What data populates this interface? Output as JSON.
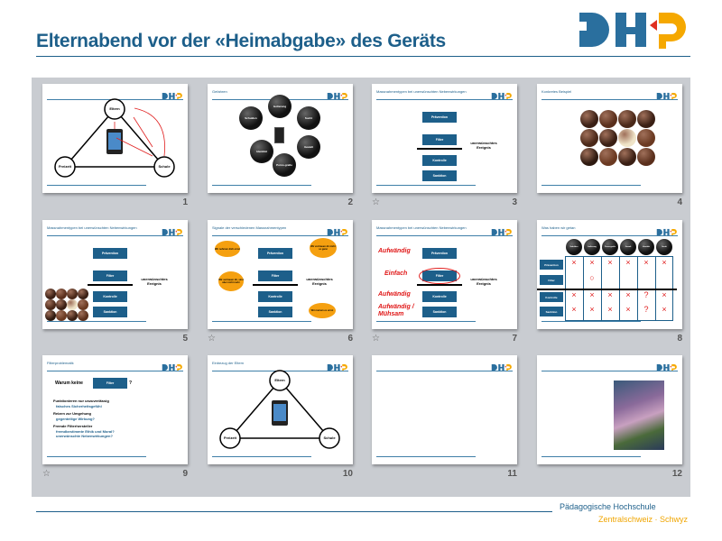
{
  "header": {
    "title": "Elternabend  vor der «Heimabgabe»  des Geräts",
    "logo_text": "PHZ"
  },
  "colors": {
    "brand_blue": "#1d5f8a",
    "brand_orange": "#f5a800",
    "accent_red": "#e02020",
    "panel": "#c9ccd1"
  },
  "footer": {
    "line1": "Pädagogische Hochschule",
    "line2": "Zentralschweiz · Schwyz"
  },
  "slides": [
    {
      "number": "1",
      "type": "triangle",
      "annotated": true,
      "title": "",
      "nodes": [
        "Eltern",
        "Freizeit",
        "Schule"
      ]
    },
    {
      "number": "2",
      "type": "bombs",
      "title": "Gefahren",
      "bombs": [
        "Schulden",
        "Isolierung",
        "Sucht",
        "Identität",
        "Gewalt",
        "Porno-grafie"
      ]
    },
    {
      "number": "3",
      "type": "measures",
      "star": true,
      "title": "Massnahmentypen  bei  unerwünschten  Nebenwirkungen",
      "boxes": [
        "Prävention",
        "Filter",
        "Kontrolle",
        "Sanktion"
      ],
      "event": "unerwünschtes Ereignis"
    },
    {
      "number": "4",
      "type": "chocolates",
      "title": "Konkretes Beispiel"
    },
    {
      "number": "5",
      "type": "measures",
      "chocs": true,
      "title": "Massnahmentypen  bei  unerwünschten  Nebenwirkungen",
      "boxes": [
        "Prävention",
        "Filter",
        "Kontrolle",
        "Sanktion"
      ],
      "event": "unerwünschtes Ereignis"
    },
    {
      "number": "6",
      "type": "measures",
      "star": true,
      "title": "Signale  der  verschiedenen  Massnahmentypen",
      "boxes": [
        "Prävention",
        "Filter",
        "Kontrolle",
        "Sanktion"
      ],
      "event": "unerwünschtes Ereignis",
      "bubbles": [
        "Wir nehmen dich ernst",
        "Wir vertrauen dir nicht so ganz",
        "Wir vertrauen dir, sind aber nicht mehr",
        "Wir meinen es ernst"
      ]
    },
    {
      "number": "7",
      "type": "measures",
      "star": true,
      "title": "Massnahmentypen  bei  unerwünschten  Nebenwirkungen",
      "boxes": [
        "Prävention",
        "Filter",
        "Kontrolle",
        "Sanktion"
      ],
      "event": "unerwünschtes Ereignis",
      "effort": [
        "Aufwändig",
        "Einfach",
        "Aufwändig",
        "Aufwändig / Mühsam"
      ]
    },
    {
      "number": "8",
      "type": "table",
      "title": "Was haben wir getan",
      "rows": [
        "Prävention",
        "Filter",
        "Kontrolle",
        "Sanktion"
      ],
      "columns": [
        "Schulden",
        "Isolierung",
        "Porno-grafie",
        "Gewalt",
        "Identität",
        "Sucht"
      ],
      "marks": [
        [
          "×",
          "×",
          "×",
          "×",
          "×",
          "×"
        ],
        [
          "",
          "○",
          "",
          "",
          "",
          ""
        ],
        [
          "×",
          "×",
          "×",
          "×",
          "?",
          "×"
        ],
        [
          "×",
          "×",
          "×",
          "×",
          "?",
          "×"
        ]
      ]
    },
    {
      "number": "9",
      "type": "text",
      "star": true,
      "title": "Filterproblematik",
      "question": [
        "Warum keine",
        "Filter",
        "?"
      ],
      "bullets": [
        {
          "text": "Funktionieren nur unzuverlässig",
          "sub": [
            "falsches Sicherheitsgefühl"
          ]
        },
        {
          "text": "Reizen zur Umgehung",
          "sub": [
            "gegenteilige Wirkung?"
          ]
        },
        {
          "text": "Fremde Filterhersteller",
          "sub": [
            "fremdbestimmte Ethik und Moral?",
            "unerwünschte Nebenwirkungen?"
          ]
        }
      ]
    },
    {
      "number": "10",
      "type": "triangle",
      "title": "Einbezug der Eltern",
      "nodes": [
        "Eltern",
        "Freizeit",
        "Schule"
      ]
    },
    {
      "number": "11",
      "type": "blank",
      "title": ""
    },
    {
      "number": "12",
      "type": "book",
      "title": ""
    }
  ]
}
